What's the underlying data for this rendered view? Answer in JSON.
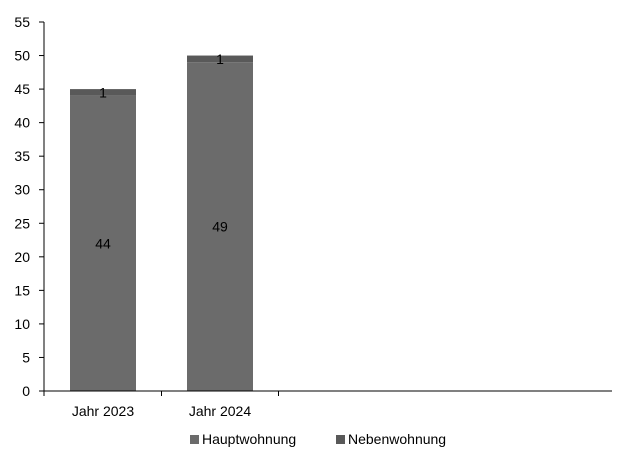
{
  "chart_data": {
    "type": "bar",
    "stacked": true,
    "categories": [
      "Jahr 2023",
      "Jahr 2024"
    ],
    "series": [
      {
        "name": "Hauptwohnung",
        "values": [
          44,
          49
        ],
        "color": "#6b6b6b"
      },
      {
        "name": "Nebenwohnung",
        "values": [
          1,
          1
        ],
        "color": "#595959"
      }
    ],
    "ylim": [
      0,
      55
    ],
    "yticks": [
      0,
      5,
      10,
      15,
      20,
      25,
      30,
      35,
      40,
      45,
      50,
      55
    ],
    "grid": false,
    "legend_position": "bottom",
    "title": "",
    "xlabel": "",
    "ylabel": ""
  }
}
